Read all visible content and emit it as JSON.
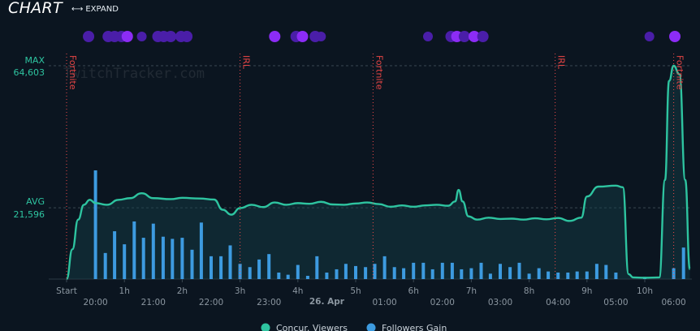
{
  "header": {
    "title": "CHART",
    "expand_label": "EXPAND",
    "expand_icon": "expand-arrows-icon"
  },
  "watermark": "TwitchTracker.com",
  "date_label": "26. Apr",
  "chart_data": {
    "type": "line+bar",
    "max_label": "MAX",
    "max_value": "64,603",
    "avg_label": "AVG",
    "avg_value": "21,596",
    "max_numeric": 64603,
    "avg_numeric": 21596,
    "duration_ticks": [
      {
        "label": "Start",
        "h": 0
      },
      {
        "label": "1h",
        "h": 1
      },
      {
        "label": "2h",
        "h": 2
      },
      {
        "label": "3h",
        "h": 3
      },
      {
        "label": "4h",
        "h": 4
      },
      {
        "label": "5h",
        "h": 5
      },
      {
        "label": "6h",
        "h": 6
      },
      {
        "label": "7h",
        "h": 7
      },
      {
        "label": "8h",
        "h": 8
      },
      {
        "label": "9h",
        "h": 9
      },
      {
        "label": "10h",
        "h": 10
      }
    ],
    "clock_ticks": [
      {
        "label": "20:00",
        "h": 0.5
      },
      {
        "label": "21:00",
        "h": 1.5
      },
      {
        "label": "22:00",
        "h": 2.5
      },
      {
        "label": "23:00",
        "h": 3.5
      },
      {
        "label": "01:00",
        "h": 5.5
      },
      {
        "label": "02:00",
        "h": 6.5
      },
      {
        "label": "03:00",
        "h": 7.5
      },
      {
        "label": "04:00",
        "h": 8.5
      },
      {
        "label": "05:00",
        "h": 9.5
      },
      {
        "label": "06:00",
        "h": 10.5
      }
    ],
    "date_tick_h": 4.5,
    "categories_markers": [
      {
        "label": "Fortnite",
        "h": 0
      },
      {
        "label": "IRL",
        "h": 3.0
      },
      {
        "label": "Fortnite",
        "h": 5.3
      },
      {
        "label": "IRL",
        "h": 8.45
      },
      {
        "label": "Fortnite",
        "h": 10.5
      }
    ],
    "series": [
      {
        "name": "Concur. Viewers",
        "color": "#2ec4a0",
        "points": [
          [
            0,
            0
          ],
          [
            0.1,
            9000
          ],
          [
            0.2,
            18000
          ],
          [
            0.3,
            22500
          ],
          [
            0.4,
            24000
          ],
          [
            0.5,
            23000
          ],
          [
            0.7,
            22500
          ],
          [
            0.9,
            24000
          ],
          [
            1.1,
            24500
          ],
          [
            1.3,
            26000
          ],
          [
            1.5,
            24500
          ],
          [
            1.8,
            24200
          ],
          [
            2.0,
            24600
          ],
          [
            2.3,
            24400
          ],
          [
            2.55,
            24100
          ],
          [
            2.7,
            21000
          ],
          [
            2.85,
            19500
          ],
          [
            3.0,
            21500
          ],
          [
            3.2,
            22500
          ],
          [
            3.4,
            21800
          ],
          [
            3.6,
            23200
          ],
          [
            3.8,
            22500
          ],
          [
            4.0,
            23000
          ],
          [
            4.2,
            22800
          ],
          [
            4.4,
            23400
          ],
          [
            4.6,
            22600
          ],
          [
            4.8,
            22500
          ],
          [
            5.0,
            22900
          ],
          [
            5.2,
            23200
          ],
          [
            5.4,
            22700
          ],
          [
            5.6,
            21900
          ],
          [
            5.8,
            22300
          ],
          [
            6.0,
            21900
          ],
          [
            6.2,
            22300
          ],
          [
            6.4,
            22500
          ],
          [
            6.6,
            22200
          ],
          [
            6.72,
            23500
          ],
          [
            6.78,
            27000
          ],
          [
            6.85,
            23500
          ],
          [
            6.95,
            19000
          ],
          [
            7.1,
            18000
          ],
          [
            7.3,
            18600
          ],
          [
            7.5,
            18200
          ],
          [
            7.7,
            18300
          ],
          [
            7.9,
            18000
          ],
          [
            8.1,
            18400
          ],
          [
            8.3,
            18100
          ],
          [
            8.5,
            18500
          ],
          [
            8.7,
            17600
          ],
          [
            8.9,
            18600
          ],
          [
            9.0,
            25000
          ],
          [
            9.2,
            28000
          ],
          [
            9.5,
            28300
          ],
          [
            9.62,
            27800
          ],
          [
            9.72,
            1500
          ],
          [
            9.8,
            500
          ],
          [
            10.0,
            400
          ],
          [
            10.25,
            500
          ],
          [
            10.35,
            30000
          ],
          [
            10.42,
            60000
          ],
          [
            10.5,
            64603
          ],
          [
            10.6,
            62000
          ],
          [
            10.7,
            30000
          ],
          [
            10.78,
            3000
          ]
        ]
      },
      {
        "name": "Followers Gain",
        "color": "#3d9be0",
        "values": [
          {
            "h": 0.5,
            "v": 100
          },
          {
            "h": 0.67,
            "v": 24
          },
          {
            "h": 0.83,
            "v": 44
          },
          {
            "h": 1.0,
            "v": 32
          },
          {
            "h": 1.17,
            "v": 53
          },
          {
            "h": 1.33,
            "v": 38
          },
          {
            "h": 1.5,
            "v": 51
          },
          {
            "h": 1.67,
            "v": 39
          },
          {
            "h": 1.83,
            "v": 37
          },
          {
            "h": 2.0,
            "v": 38
          },
          {
            "h": 2.17,
            "v": 27
          },
          {
            "h": 2.33,
            "v": 52
          },
          {
            "h": 2.5,
            "v": 21
          },
          {
            "h": 2.67,
            "v": 21
          },
          {
            "h": 2.83,
            "v": 31
          },
          {
            "h": 3.0,
            "v": 14
          },
          {
            "h": 3.17,
            "v": 11
          },
          {
            "h": 3.33,
            "v": 18
          },
          {
            "h": 3.5,
            "v": 23
          },
          {
            "h": 3.67,
            "v": 6
          },
          {
            "h": 3.83,
            "v": 4
          },
          {
            "h": 4.0,
            "v": 13
          },
          {
            "h": 4.17,
            "v": 3
          },
          {
            "h": 4.33,
            "v": 21
          },
          {
            "h": 4.5,
            "v": 6
          },
          {
            "h": 4.67,
            "v": 9
          },
          {
            "h": 4.83,
            "v": 14
          },
          {
            "h": 5.0,
            "v": 12
          },
          {
            "h": 5.17,
            "v": 11
          },
          {
            "h": 5.33,
            "v": 14
          },
          {
            "h": 5.5,
            "v": 21
          },
          {
            "h": 5.67,
            "v": 11
          },
          {
            "h": 5.83,
            "v": 10
          },
          {
            "h": 6.0,
            "v": 15
          },
          {
            "h": 6.17,
            "v": 15
          },
          {
            "h": 6.33,
            "v": 9
          },
          {
            "h": 6.5,
            "v": 15
          },
          {
            "h": 6.67,
            "v": 15
          },
          {
            "h": 6.83,
            "v": 9
          },
          {
            "h": 7.0,
            "v": 10
          },
          {
            "h": 7.17,
            "v": 15
          },
          {
            "h": 7.33,
            "v": 5
          },
          {
            "h": 7.5,
            "v": 14
          },
          {
            "h": 7.67,
            "v": 11
          },
          {
            "h": 7.83,
            "v": 15
          },
          {
            "h": 8.0,
            "v": 5
          },
          {
            "h": 8.17,
            "v": 10
          },
          {
            "h": 8.33,
            "v": 7
          },
          {
            "h": 8.5,
            "v": 6
          },
          {
            "h": 8.67,
            "v": 6
          },
          {
            "h": 8.83,
            "v": 7
          },
          {
            "h": 9.0,
            "v": 7
          },
          {
            "h": 9.17,
            "v": 14
          },
          {
            "h": 9.33,
            "v": 13
          },
          {
            "h": 9.5,
            "v": 6
          },
          {
            "h": 10.0,
            "v": 2
          },
          {
            "h": 10.5,
            "v": 10
          },
          {
            "h": 10.67,
            "v": 29
          }
        ]
      }
    ],
    "event_dots": [
      {
        "h": 0.38,
        "big": true
      },
      {
        "h": 0.72,
        "big": true
      },
      {
        "h": 0.83,
        "big": true
      },
      {
        "h": 0.95,
        "big": true
      },
      {
        "h": 1.05,
        "big": true,
        "bright": true
      },
      {
        "h": 1.3,
        "big": false
      },
      {
        "h": 1.58,
        "big": true
      },
      {
        "h": 1.68,
        "big": true
      },
      {
        "h": 1.8,
        "big": true
      },
      {
        "h": 1.98,
        "big": true
      },
      {
        "h": 2.08,
        "big": true
      },
      {
        "h": 3.6,
        "big": true,
        "bright": true
      },
      {
        "h": 3.97,
        "big": true
      },
      {
        "h": 4.08,
        "big": true,
        "bright": true
      },
      {
        "h": 4.3,
        "big": true
      },
      {
        "h": 4.4,
        "big": false
      },
      {
        "h": 6.25,
        "big": false
      },
      {
        "h": 6.65,
        "big": true
      },
      {
        "h": 6.75,
        "big": true,
        "bright": true
      },
      {
        "h": 6.88,
        "big": true
      },
      {
        "h": 7.05,
        "big": true,
        "bright": true
      },
      {
        "h": 7.2,
        "big": true
      },
      {
        "h": 10.08,
        "big": false
      },
      {
        "h": 10.52,
        "big": true,
        "bright": true
      }
    ],
    "legend": [
      "Concur. Viewers",
      "Followers Gain"
    ]
  }
}
